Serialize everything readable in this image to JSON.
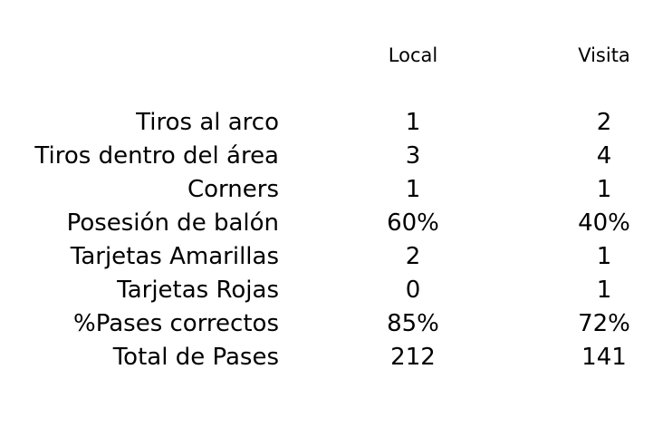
{
  "chart_data": {
    "type": "table",
    "columns": [
      "Local",
      "Visita"
    ],
    "rows": [
      {
        "label": "Tiros al arco",
        "values": [
          "1",
          "2"
        ]
      },
      {
        "label": "Tiros dentro del área",
        "values": [
          "3",
          "4"
        ]
      },
      {
        "label": "Corners",
        "values": [
          "1",
          "1"
        ]
      },
      {
        "label": "Posesión de balón",
        "values": [
          "60%",
          "40%"
        ]
      },
      {
        "label": "Tarjetas Amarillas",
        "values": [
          "2",
          "1"
        ]
      },
      {
        "label": "Tarjetas Rojas",
        "values": [
          "0",
          "1"
        ]
      },
      {
        "label": "%Pases correctos",
        "values": [
          "85%",
          "72%"
        ]
      },
      {
        "label": "Total de Pases",
        "values": [
          "212",
          "141"
        ]
      }
    ]
  },
  "colors": {
    "text": "#000000",
    "background": "#ffffff"
  }
}
